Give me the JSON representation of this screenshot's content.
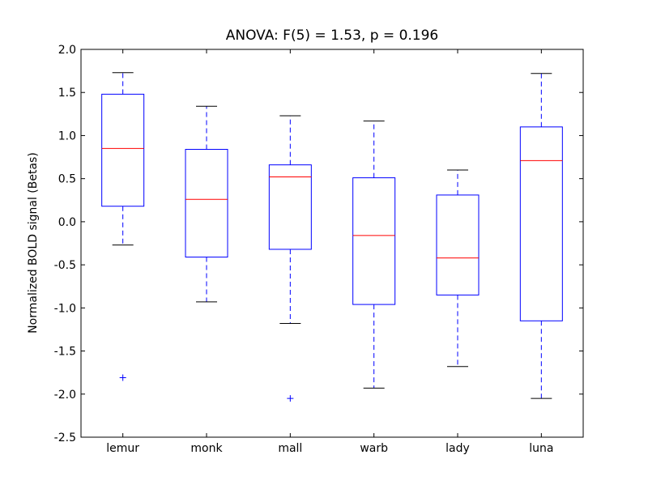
{
  "chart_data": {
    "type": "boxplot",
    "title": "ANOVA: F(5) = 1.53, p = 0.196",
    "xlabel": "",
    "ylabel": "Normalized BOLD signal (Betas)",
    "ylim": [
      -2.5,
      2.0
    ],
    "yticks": [
      "-2.5",
      "-2.0",
      "-1.5",
      "-1.0",
      "-0.5",
      "0.0",
      "0.5",
      "1.0",
      "1.5",
      "2.0"
    ],
    "grid": false,
    "categories": [
      "lemur",
      "monk",
      "mall",
      "warb",
      "lady",
      "luna"
    ],
    "boxes": [
      {
        "whisker_low": -0.27,
        "q1": 0.18,
        "median": 0.85,
        "q3": 1.48,
        "whisker_high": 1.73,
        "outliers": [
          -1.81
        ]
      },
      {
        "whisker_low": -0.93,
        "q1": -0.41,
        "median": 0.26,
        "q3": 0.84,
        "whisker_high": 1.34,
        "outliers": []
      },
      {
        "whisker_low": -1.18,
        "q1": -0.32,
        "median": 0.52,
        "q3": 0.66,
        "whisker_high": 1.23,
        "outliers": [
          -2.05
        ]
      },
      {
        "whisker_low": -1.93,
        "q1": -0.96,
        "median": -0.16,
        "q3": 0.51,
        "whisker_high": 1.17,
        "outliers": []
      },
      {
        "whisker_low": -1.68,
        "q1": -0.85,
        "median": -0.42,
        "q3": 0.31,
        "whisker_high": 0.6,
        "outliers": []
      },
      {
        "whisker_low": -2.05,
        "q1": -1.15,
        "median": 0.71,
        "q3": 1.1,
        "whisker_high": 1.72,
        "outliers": []
      }
    ],
    "colors": {
      "box": "#0000ff",
      "median": "#ff0000",
      "cap": "#000000",
      "outlier": "#0000ff"
    }
  }
}
